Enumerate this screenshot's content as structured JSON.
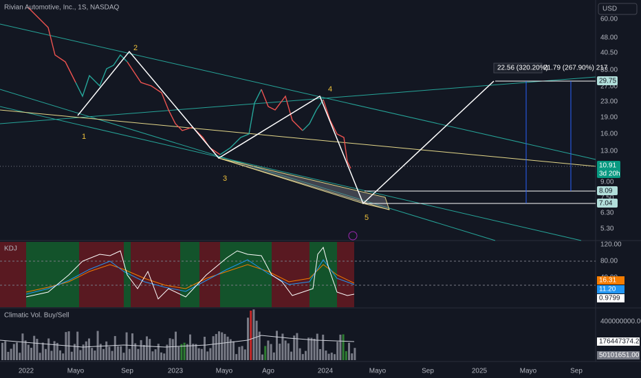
{
  "header": {
    "title": "Rivian Automotive, Inc., 1S, NASDAQ",
    "currency": "USD"
  },
  "price_axis": [
    "60.00",
    "48.00",
    "40.50",
    "33.00",
    "27.00",
    "23.00",
    "19.00",
    "16.00",
    "13.00",
    "9.00",
    "7.50",
    "6.30",
    "5.30"
  ],
  "price_tags": {
    "target": "29.75",
    "last": "10.91",
    "countdown": "3d 20h",
    "level_a": "8.09",
    "level_b": "7.04"
  },
  "waves": [
    "1",
    "2",
    "3",
    "4",
    "5"
  ],
  "measures": [
    "22.56 (320.20%)",
    "21.79 (267.90%) 217"
  ],
  "kdj": {
    "name": "KDJ",
    "axis": [
      "120.00",
      "80.00",
      "40.00"
    ],
    "tags": [
      "16.31",
      "11.20",
      "0.9799"
    ]
  },
  "volume": {
    "name": "Climatic Vol. Buy/Sell",
    "axis": "400000000.00",
    "tags": [
      "176447374.20",
      "50101651.00"
    ]
  },
  "time_axis": [
    "2022",
    "Mayo",
    "Sep",
    "2023",
    "Mayo",
    "Ago",
    "2024",
    "Mayo",
    "Sep",
    "2025",
    "Mayo",
    "Sep"
  ]
}
